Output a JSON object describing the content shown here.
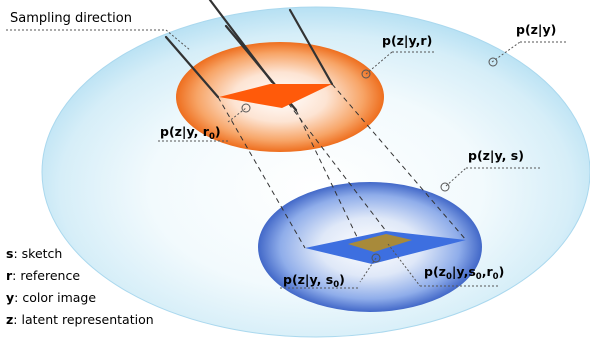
{
  "labels": {
    "sampling_direction": "Sampling direction",
    "p_z_y": "p(z|y)",
    "p_z_y_r": "p(z|y,r)",
    "p_z_y_r0": "p(z|y, r",
    "p_z_y_r0_sub": "0",
    "p_z_y_s": "p(z|y, s)",
    "p_z_y_s0": "p(z|y, s",
    "p_z_y_s0_sub": "0",
    "p_z0_y_s0_r0": {
      "pre": "p(z",
      "sub1": "0",
      "mid": "|y,s",
      "sub2": "0",
      "mid2": ",r",
      "sub3": "0",
      "post": ")"
    }
  },
  "legend": [
    {
      "key": "s",
      "text": ": sketch"
    },
    {
      "key": "r",
      "text": ": reference"
    },
    {
      "key": "y",
      "text": ": color image"
    },
    {
      "key": "z",
      "text": ": latent representation"
    }
  ],
  "colors": {
    "outer_ellipse": "#cfeaf6",
    "orange_ellipse": "#f07a2c",
    "blue_ellipse": "#4a76cf",
    "orange_diamond": "#ff5a0a",
    "blue_diamond": "#3d6fe0",
    "overlap_diamond": "#a88a3a"
  }
}
